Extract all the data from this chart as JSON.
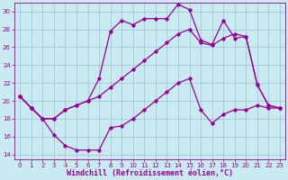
{
  "xlabel": "Windchill (Refroidissement éolien,°C)",
  "bg_color": "#c8eaf0",
  "grid_color": "#a0c8d8",
  "line_color": "#990099",
  "xlim": [
    -0.5,
    23.5
  ],
  "ylim": [
    13.5,
    31.0
  ],
  "yticks": [
    14,
    16,
    18,
    20,
    22,
    24,
    26,
    28,
    30
  ],
  "xticks": [
    0,
    1,
    2,
    3,
    4,
    5,
    6,
    7,
    8,
    9,
    10,
    11,
    12,
    13,
    14,
    15,
    16,
    17,
    18,
    19,
    20,
    21,
    22,
    23
  ],
  "line1_x": [
    0,
    1,
    2,
    3,
    4,
    5,
    6,
    7,
    8,
    9,
    10,
    11,
    12,
    13,
    14,
    15,
    16,
    17,
    18,
    19,
    20,
    21,
    22,
    23
  ],
  "line1_y": [
    20.5,
    19.2,
    18.0,
    18.0,
    19.0,
    19.5,
    20.0,
    20.5,
    21.5,
    22.5,
    23.5,
    24.5,
    25.5,
    26.5,
    27.5,
    28.0,
    26.5,
    26.2,
    27.0,
    27.5,
    27.2,
    21.8,
    19.5,
    19.2
  ],
  "line2_x": [
    0,
    1,
    2,
    3,
    4,
    5,
    6,
    7,
    8,
    9,
    10,
    11,
    12,
    13,
    14,
    15,
    16,
    17,
    18,
    19,
    20,
    21,
    22,
    23
  ],
  "line2_y": [
    20.5,
    19.2,
    18.0,
    18.0,
    19.0,
    19.5,
    20.0,
    22.5,
    27.8,
    29.0,
    28.5,
    29.2,
    29.2,
    29.2,
    30.8,
    30.2,
    26.8,
    26.3,
    29.0,
    27.0,
    27.2,
    21.8,
    19.5,
    19.2
  ],
  "line3_x": [
    0,
    1,
    2,
    3,
    4,
    5,
    6,
    7,
    8,
    9,
    10,
    11,
    12,
    13,
    14,
    15,
    16,
    17,
    18,
    19,
    20,
    21,
    22,
    23
  ],
  "line3_y": [
    20.5,
    19.2,
    18.0,
    16.2,
    15.0,
    14.5,
    14.5,
    14.5,
    17.0,
    17.2,
    18.0,
    19.0,
    20.0,
    21.0,
    22.0,
    22.5,
    19.0,
    17.5,
    18.5,
    19.0,
    19.0,
    19.5,
    19.2,
    19.2
  ],
  "marker": "D",
  "markersize": 1.8,
  "linewidth": 0.9,
  "tick_fontsize": 5.0,
  "label_fontsize": 6.0
}
